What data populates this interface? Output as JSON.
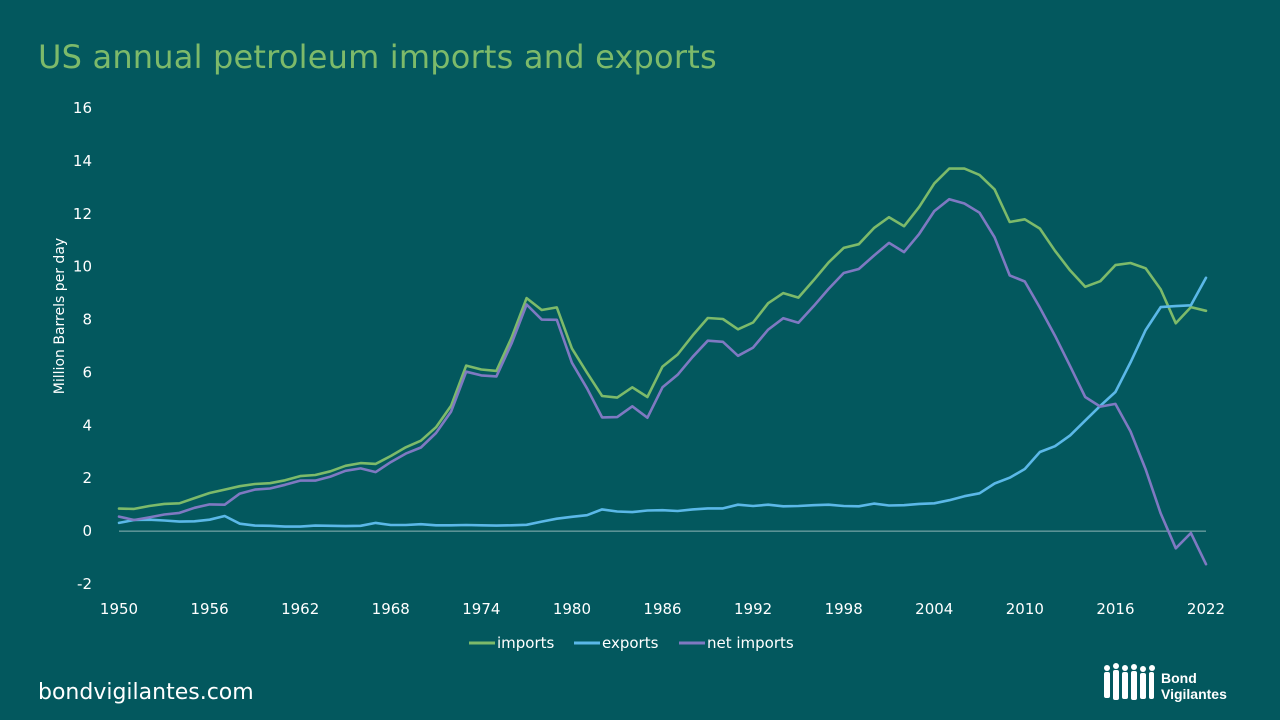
{
  "page": {
    "footer_url": "bondvigilantes.com"
  },
  "logo": {
    "line1": "Bond",
    "line2": "Vigilantes"
  },
  "chart_data": {
    "type": "line",
    "title": "US annual petroleum imports and exports",
    "xlabel": "",
    "ylabel": "Million Barrels per day",
    "ylim": [
      -2,
      16
    ],
    "yticks": [
      -2,
      0,
      2,
      4,
      6,
      8,
      10,
      12,
      14,
      16
    ],
    "xlim": [
      1950,
      2022
    ],
    "xticks": [
      1950,
      1956,
      1962,
      1968,
      1974,
      1980,
      1986,
      1992,
      1998,
      2004,
      2010,
      2016,
      2022
    ],
    "grid": false,
    "legend_position": "bottom",
    "x": [
      1950,
      1951,
      1952,
      1953,
      1954,
      1955,
      1956,
      1957,
      1958,
      1959,
      1960,
      1961,
      1962,
      1963,
      1964,
      1965,
      1966,
      1967,
      1968,
      1969,
      1970,
      1971,
      1972,
      1973,
      1974,
      1975,
      1976,
      1977,
      1978,
      1979,
      1980,
      1981,
      1982,
      1983,
      1984,
      1985,
      1986,
      1987,
      1988,
      1989,
      1990,
      1991,
      1992,
      1993,
      1994,
      1995,
      1996,
      1997,
      1998,
      1999,
      2000,
      2001,
      2002,
      2003,
      2004,
      2005,
      2006,
      2007,
      2008,
      2009,
      2010,
      2011,
      2012,
      2013,
      2014,
      2015,
      2016,
      2017,
      2018,
      2019,
      2020,
      2021,
      2022
    ],
    "series": [
      {
        "name": "imports",
        "color": "#7DBA6A",
        "values": [
          0.85,
          0.84,
          0.95,
          1.03,
          1.05,
          1.25,
          1.44,
          1.57,
          1.7,
          1.78,
          1.81,
          1.92,
          2.08,
          2.12,
          2.26,
          2.47,
          2.57,
          2.54,
          2.84,
          3.17,
          3.42,
          3.93,
          4.74,
          6.26,
          6.11,
          6.06,
          7.31,
          8.81,
          8.36,
          8.46,
          6.91,
          5.99,
          5.11,
          5.05,
          5.44,
          5.07,
          6.22,
          6.68,
          7.4,
          8.06,
          8.02,
          7.63,
          7.89,
          8.62,
          9.0,
          8.83,
          9.48,
          10.16,
          10.71,
          10.85,
          11.46,
          11.87,
          11.53,
          12.26,
          13.15,
          13.71,
          13.71,
          13.47,
          12.92,
          11.69,
          11.79,
          11.44,
          10.6,
          9.86,
          9.24,
          9.45,
          10.06,
          10.14,
          9.94,
          9.14,
          7.86,
          8.47,
          8.33
        ]
      },
      {
        "name": "exports",
        "color": "#5BB8E8",
        "values": [
          0.31,
          0.42,
          0.43,
          0.4,
          0.36,
          0.37,
          0.43,
          0.57,
          0.28,
          0.21,
          0.2,
          0.17,
          0.17,
          0.21,
          0.2,
          0.19,
          0.2,
          0.31,
          0.23,
          0.23,
          0.26,
          0.22,
          0.22,
          0.23,
          0.22,
          0.21,
          0.22,
          0.24,
          0.36,
          0.47,
          0.54,
          0.6,
          0.82,
          0.74,
          0.72,
          0.78,
          0.79,
          0.76,
          0.82,
          0.86,
          0.86,
          1.0,
          0.95,
          1.0,
          0.94,
          0.95,
          0.98,
          1.0,
          0.95,
          0.94,
          1.04,
          0.97,
          0.98,
          1.03,
          1.05,
          1.17,
          1.32,
          1.43,
          1.8,
          2.02,
          2.35,
          2.99,
          3.21,
          3.62,
          4.18,
          4.74,
          5.26,
          6.38,
          7.6,
          8.47,
          8.51,
          8.54,
          9.58
        ]
      },
      {
        "name": "net imports",
        "color": "#7F79C2",
        "values": [
          0.55,
          0.42,
          0.52,
          0.63,
          0.69,
          0.88,
          1.01,
          1.0,
          1.42,
          1.57,
          1.61,
          1.75,
          1.91,
          1.91,
          2.06,
          2.28,
          2.37,
          2.23,
          2.61,
          2.93,
          3.16,
          3.71,
          4.52,
          6.03,
          5.89,
          5.85,
          7.09,
          8.57,
          8.0,
          7.99,
          6.37,
          5.4,
          4.3,
          4.31,
          4.72,
          4.29,
          5.44,
          5.91,
          6.59,
          7.2,
          7.16,
          6.63,
          6.94,
          7.62,
          8.05,
          7.88,
          8.5,
          9.16,
          9.76,
          9.91,
          10.42,
          10.9,
          10.55,
          11.24,
          12.1,
          12.55,
          12.39,
          12.04,
          11.11,
          9.67,
          9.44,
          8.45,
          7.39,
          6.24,
          5.07,
          4.71,
          4.81,
          3.77,
          2.34,
          0.67,
          -0.65,
          -0.07,
          -1.25
        ]
      }
    ]
  }
}
